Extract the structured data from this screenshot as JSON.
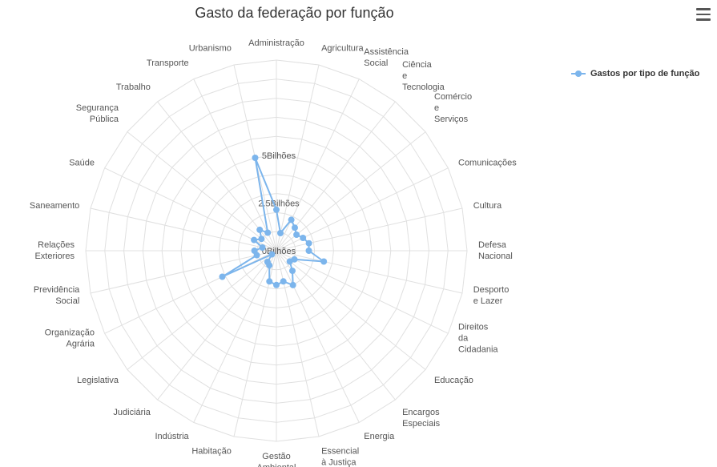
{
  "chart_data": {
    "type": "radar",
    "title": "Gasto da federação por função",
    "legend_position": "top-right",
    "series_color": "#7cb5ec",
    "ticks": [
      "0Bilhões",
      "2.5Bilhões",
      "5Bilhões"
    ],
    "range": [
      0,
      10
    ],
    "categories": [
      [
        "Administração"
      ],
      [
        "Agricultura"
      ],
      [
        "Assistência",
        "Social"
      ],
      [
        "Ciência",
        "e",
        "Tecnologia"
      ],
      [
        "Comércio",
        "e",
        "Serviços"
      ],
      [
        "Comunicações"
      ],
      [
        "Cultura"
      ],
      [
        "Defesa",
        "Nacional"
      ],
      [
        "Desporto",
        "e Lazer"
      ],
      [
        "Direitos",
        "da",
        "Cidadania"
      ],
      [
        "Educação"
      ],
      [
        "Encargos",
        "Especiais"
      ],
      [
        "Energia"
      ],
      [
        "Essencial",
        "à Justiça"
      ],
      [
        "Gestão",
        "Ambiental"
      ],
      [
        "Habitação"
      ],
      [
        "Indústria"
      ],
      [
        "Judiciária"
      ],
      [
        "Legislativa"
      ],
      [
        "Organização",
        "Agrária"
      ],
      [
        "Previdência",
        "Social"
      ],
      [
        "Relações",
        "Exteriores"
      ],
      [
        "Saneamento"
      ],
      [
        "Saúde"
      ],
      [
        "Segurança",
        "Pública"
      ],
      [
        "Trabalho"
      ],
      [
        "Transporte"
      ],
      [
        "Urbanismo"
      ]
    ],
    "series": [
      {
        "name": "Gastos por tipo de função",
        "values": [
          2.15,
          0.95,
          1.8,
          1.55,
          1.35,
          1.55,
          1.75,
          1.7,
          2.55,
          1.05,
          0.9,
          1.35,
          2.0,
          1.65,
          1.8,
          1.65,
          0.85,
          0.75,
          0.3,
          3.15,
          1.05,
          1.15,
          0.75,
          1.3,
          1.0,
          1.4,
          1.05,
          5.0
        ]
      }
    ]
  }
}
